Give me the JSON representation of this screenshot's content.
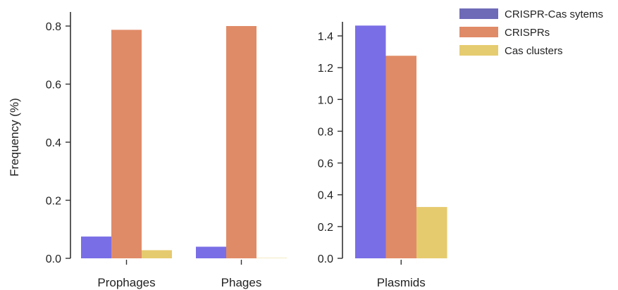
{
  "chart_data": [
    {
      "type": "bar",
      "categories": [
        "Prophages",
        "Phages"
      ],
      "ylabel": "Frequency (%)",
      "xlabel": "",
      "ylim": [
        0,
        0.8
      ],
      "yticks": [
        "0.0",
        "0.2",
        "0.4",
        "0.6",
        "0.8"
      ],
      "series": [
        {
          "name": "CRISPR-Cas sytems",
          "values": [
            0.075,
            0.04
          ]
        },
        {
          "name": "CRISPRs",
          "values": [
            0.787,
            0.8
          ]
        },
        {
          "name": "Cas clusters",
          "values": [
            0.028,
            0.001
          ]
        }
      ],
      "grid": false
    },
    {
      "type": "bar",
      "categories": [
        "Plasmids"
      ],
      "ylabel": "",
      "xlabel": "",
      "ylim": [
        0,
        1.4
      ],
      "yticks": [
        "0.0",
        "0.2",
        "0.4",
        "0.6",
        "0.8",
        "1.0",
        "1.2",
        "1.4"
      ],
      "series": [
        {
          "name": "CRISPR-Cas sytems",
          "values": [
            1.465
          ]
        },
        {
          "name": "CRISPRs",
          "values": [
            1.275
          ]
        },
        {
          "name": "Cas clusters",
          "values": [
            0.323
          ]
        }
      ],
      "grid": false
    }
  ],
  "legend": {
    "placement": "top-right",
    "items": [
      {
        "label": "CRISPR-Cas sytems",
        "color": "#6e6ab8"
      },
      {
        "label": "CRISPRs",
        "color": "#e08b67"
      },
      {
        "label": "Cas clusters",
        "color": "#e6cc70"
      }
    ]
  },
  "bar_colors": [
    "#7a6ee6",
    "#e08b67",
    "#e6ca6e"
  ]
}
